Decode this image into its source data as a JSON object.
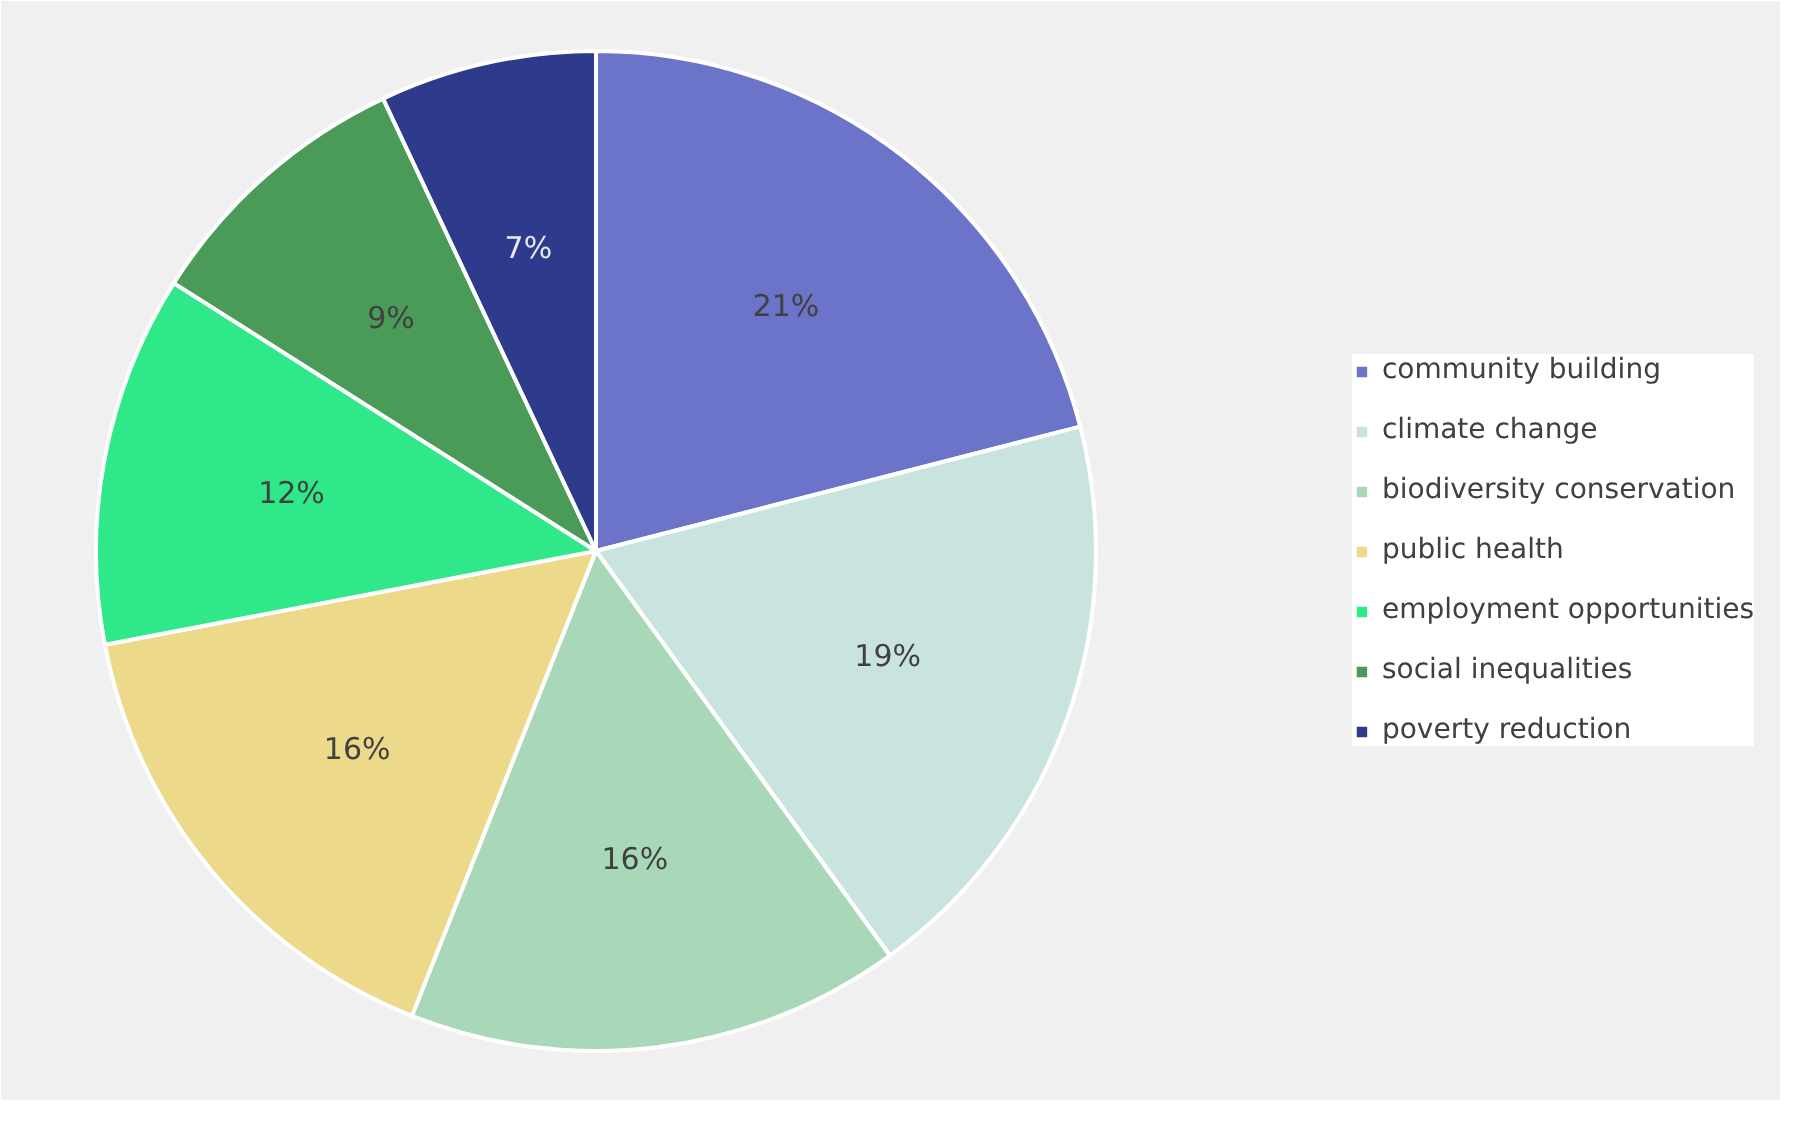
{
  "chart_data": {
    "type": "pie",
    "categories": [
      "community building",
      "climate change",
      "biodiversity conservation",
      "public health",
      "employment opportunities",
      "social inequalities",
      "poverty reduction"
    ],
    "values": [
      21,
      19,
      16,
      16,
      12,
      9,
      7
    ],
    "colors": [
      "#6b74c8",
      "#c9e3df",
      "#a8d8b8",
      "#ecd98a",
      "#2ee88a",
      "#4a9a58",
      "#2e3a8c"
    ],
    "value_labels": [
      "21%",
      "19%",
      "16%",
      "16%",
      "12%",
      "9%",
      "7%"
    ],
    "legend": "right"
  }
}
